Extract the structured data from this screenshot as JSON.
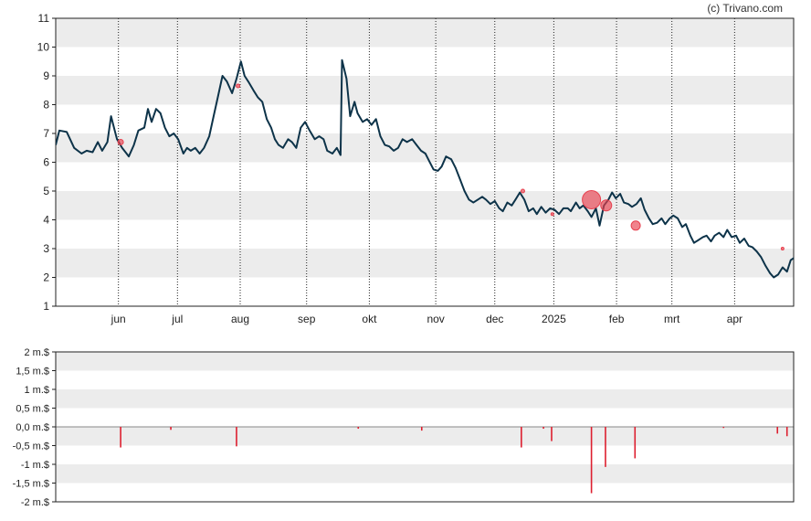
{
  "copyright": "(c) Trivano.com",
  "chart_data": [
    {
      "type": "line",
      "title": "",
      "xlabel": "",
      "ylabel": "",
      "ylim": [
        1,
        11
      ],
      "yticks": [
        1,
        2,
        3,
        4,
        5,
        6,
        7,
        8,
        9,
        10,
        11
      ],
      "xlim": [
        0,
        100
      ],
      "month_labels": [
        {
          "label": "jun",
          "x": 8.5
        },
        {
          "label": "jul",
          "x": 16.5
        },
        {
          "label": "aug",
          "x": 25.0
        },
        {
          "label": "sep",
          "x": 34.0
        },
        {
          "label": "okt",
          "x": 42.5
        },
        {
          "label": "nov",
          "x": 51.5
        },
        {
          "label": "dec",
          "x": 59.5
        },
        {
          "label": "2025",
          "x": 67.5
        },
        {
          "label": "feb",
          "x": 76.0
        },
        {
          "label": "mrt",
          "x": 83.5
        },
        {
          "label": "apr",
          "x": 92.0
        }
      ],
      "grid": "alternating horizontal bands, dotted vertical month lines",
      "series": [
        {
          "color": "#0d3349",
          "points": [
            [
              0,
              6.6
            ],
            [
              0.5,
              7.1
            ],
            [
              1.5,
              7.05
            ],
            [
              2.5,
              6.5
            ],
            [
              3.5,
              6.3
            ],
            [
              4.2,
              6.4
            ],
            [
              5,
              6.35
            ],
            [
              5.7,
              6.7
            ],
            [
              6.3,
              6.4
            ],
            [
              7,
              6.7
            ],
            [
              7.5,
              7.6
            ],
            [
              8,
              7.1
            ],
            [
              8.3,
              6.8
            ],
            [
              9,
              6.5
            ],
            [
              9.6,
              6.3
            ],
            [
              9.9,
              6.2
            ],
            [
              10.6,
              6.6
            ],
            [
              11.2,
              7.1
            ],
            [
              12,
              7.2
            ],
            [
              12.5,
              7.85
            ],
            [
              13,
              7.4
            ],
            [
              13.6,
              7.85
            ],
            [
              14.2,
              7.7
            ],
            [
              14.8,
              7.2
            ],
            [
              15.4,
              6.9
            ],
            [
              16,
              7.0
            ],
            [
              16.6,
              6.8
            ],
            [
              17.3,
              6.3
            ],
            [
              17.8,
              6.5
            ],
            [
              18.3,
              6.4
            ],
            [
              18.9,
              6.5
            ],
            [
              19.5,
              6.3
            ],
            [
              20.1,
              6.5
            ],
            [
              20.8,
              6.9
            ],
            [
              21.4,
              7.6
            ],
            [
              22,
              8.3
            ],
            [
              22.6,
              9.0
            ],
            [
              23.2,
              8.8
            ],
            [
              23.9,
              8.4
            ],
            [
              24.5,
              8.9
            ],
            [
              25.1,
              9.5
            ],
            [
              25.6,
              9.0
            ],
            [
              26.1,
              8.8
            ],
            [
              26.8,
              8.5
            ],
            [
              27.4,
              8.25
            ],
            [
              28,
              8.1
            ],
            [
              28.6,
              7.5
            ],
            [
              29.2,
              7.2
            ],
            [
              29.7,
              6.8
            ],
            [
              30.2,
              6.6
            ],
            [
              30.8,
              6.5
            ],
            [
              31.5,
              6.8
            ],
            [
              32,
              6.7
            ],
            [
              32.6,
              6.5
            ],
            [
              33.2,
              7.2
            ],
            [
              33.8,
              7.4
            ],
            [
              34.4,
              7.1
            ],
            [
              35.1,
              6.8
            ],
            [
              35.7,
              6.9
            ],
            [
              36.3,
              6.8
            ],
            [
              36.8,
              6.4
            ],
            [
              37.5,
              6.3
            ],
            [
              38.1,
              6.5
            ],
            [
              38.6,
              6.25
            ],
            [
              38.8,
              9.55
            ],
            [
              39.4,
              8.9
            ],
            [
              39.9,
              7.6
            ],
            [
              40.5,
              8.1
            ],
            [
              40.9,
              7.7
            ],
            [
              41.6,
              7.4
            ],
            [
              42.2,
              7.5
            ],
            [
              42.8,
              7.3
            ],
            [
              43.4,
              7.5
            ],
            [
              44,
              6.9
            ],
            [
              44.6,
              6.6
            ],
            [
              45.2,
              6.55
            ],
            [
              45.8,
              6.4
            ],
            [
              46.4,
              6.5
            ],
            [
              47,
              6.8
            ],
            [
              47.6,
              6.7
            ],
            [
              48.3,
              6.8
            ],
            [
              48.9,
              6.6
            ],
            [
              49.5,
              6.4
            ],
            [
              50.1,
              6.3
            ],
            [
              50.6,
              6.05
            ],
            [
              51.2,
              5.75
            ],
            [
              51.8,
              5.7
            ],
            [
              52.3,
              5.85
            ],
            [
              52.9,
              6.2
            ],
            [
              53.6,
              6.1
            ],
            [
              54.2,
              5.8
            ],
            [
              54.8,
              5.4
            ],
            [
              55.4,
              5.0
            ],
            [
              56,
              4.7
            ],
            [
              56.6,
              4.6
            ],
            [
              57.2,
              4.7
            ],
            [
              57.8,
              4.8
            ],
            [
              58.3,
              4.7
            ],
            [
              58.9,
              4.55
            ],
            [
              59.5,
              4.65
            ],
            [
              60.1,
              4.4
            ],
            [
              60.6,
              4.3
            ],
            [
              61.2,
              4.6
            ],
            [
              61.8,
              4.5
            ],
            [
              62.3,
              4.7
            ],
            [
              62.9,
              4.95
            ],
            [
              63.5,
              4.7
            ],
            [
              64.1,
              4.3
            ],
            [
              64.7,
              4.4
            ],
            [
              65.2,
              4.2
            ],
            [
              65.8,
              4.45
            ],
            [
              66.4,
              4.25
            ],
            [
              67,
              4.4
            ],
            [
              67.6,
              4.35
            ],
            [
              68.2,
              4.2
            ],
            [
              68.8,
              4.4
            ],
            [
              69.4,
              4.4
            ],
            [
              69.8,
              4.3
            ],
            [
              70.5,
              4.6
            ],
            [
              71,
              4.4
            ],
            [
              71.5,
              4.5
            ],
            [
              72.1,
              4.3
            ],
            [
              72.6,
              4.1
            ],
            [
              73.2,
              4.4
            ],
            [
              73.7,
              3.8
            ],
            [
              74.3,
              4.5
            ],
            [
              74.9,
              4.7
            ],
            [
              75.4,
              4.95
            ],
            [
              75.9,
              4.75
            ],
            [
              76.5,
              4.9
            ],
            [
              77,
              4.6
            ],
            [
              77.6,
              4.55
            ],
            [
              78.1,
              4.45
            ],
            [
              78.7,
              4.55
            ],
            [
              79.3,
              4.75
            ],
            [
              79.8,
              4.35
            ],
            [
              80.4,
              4.05
            ],
            [
              80.9,
              3.85
            ],
            [
              81.5,
              3.9
            ],
            [
              82.1,
              4.05
            ],
            [
              82.6,
              3.85
            ],
            [
              83.2,
              4.05
            ],
            [
              83.7,
              4.15
            ],
            [
              84.3,
              4.05
            ],
            [
              84.9,
              3.75
            ],
            [
              85.4,
              3.85
            ],
            [
              86,
              3.45
            ],
            [
              86.5,
              3.2
            ],
            [
              87.1,
              3.3
            ],
            [
              87.7,
              3.4
            ],
            [
              88.2,
              3.45
            ],
            [
              88.8,
              3.25
            ],
            [
              89.3,
              3.45
            ],
            [
              89.9,
              3.55
            ],
            [
              90.5,
              3.4
            ],
            [
              91,
              3.65
            ],
            [
              91.6,
              3.4
            ],
            [
              92.2,
              3.45
            ],
            [
              92.7,
              3.2
            ],
            [
              93.3,
              3.35
            ],
            [
              93.9,
              3.1
            ],
            [
              94.4,
              3.05
            ],
            [
              95,
              2.9
            ],
            [
              95.6,
              2.7
            ],
            [
              96.2,
              2.4
            ],
            [
              96.8,
              2.15
            ],
            [
              97.3,
              2.0
            ],
            [
              97.9,
              2.1
            ],
            [
              98.5,
              2.35
            ],
            [
              99.1,
              2.2
            ],
            [
              99.6,
              2.6
            ],
            [
              100.2,
              2.7
            ],
            [
              100.8,
              2.9
            ],
            [
              101.3,
              3.0
            ],
            [
              101.9,
              2.9
            ]
          ]
        }
      ],
      "markers": [
        {
          "x": 8.8,
          "y": 6.7,
          "size": 3
        },
        {
          "x": 24.7,
          "y": 8.65,
          "size": 2
        },
        {
          "x": 63.3,
          "y": 5.0,
          "size": 2
        },
        {
          "x": 67.3,
          "y": 4.2,
          "size": 1
        },
        {
          "x": 72.6,
          "y": 4.7,
          "size": 10
        },
        {
          "x": 74.6,
          "y": 4.5,
          "size": 6
        },
        {
          "x": 78.6,
          "y": 3.8,
          "size": 5
        },
        {
          "x": 98.5,
          "y": 3.0,
          "size": 1
        }
      ],
      "marker_color": "#e8414f"
    },
    {
      "type": "bar",
      "title": "",
      "xlabel": "",
      "ylabel": "",
      "ylim": [
        -2,
        2
      ],
      "yticks": [
        "2 m.$",
        "1,5 m.$",
        "1 m.$",
        "0,5 m.$",
        "0,0 m.$",
        "-0,5 m.$",
        "-1 m.$",
        "-1,5 m.$",
        "-2 m.$"
      ],
      "ytick_values": [
        2,
        1.5,
        1,
        0.5,
        0,
        -0.5,
        -1,
        -1.5,
        -2
      ],
      "xlim": [
        0,
        100
      ],
      "grid": "alternating horizontal bands",
      "color": "#dd1f2f",
      "values": [
        {
          "x": 8.8,
          "v": -0.55
        },
        {
          "x": 15.6,
          "v": -0.08
        },
        {
          "x": 24.5,
          "v": -0.52
        },
        {
          "x": 41.0,
          "v": -0.05
        },
        {
          "x": 49.6,
          "v": -0.1
        },
        {
          "x": 63.1,
          "v": -0.55
        },
        {
          "x": 66.1,
          "v": -0.05
        },
        {
          "x": 67.2,
          "v": -0.38
        },
        {
          "x": 72.6,
          "v": -1.77
        },
        {
          "x": 74.5,
          "v": -1.07
        },
        {
          "x": 78.5,
          "v": -0.84
        },
        {
          "x": 90.5,
          "v": -0.03
        },
        {
          "x": 97.8,
          "v": -0.18
        },
        {
          "x": 99.1,
          "v": -0.25
        }
      ]
    }
  ]
}
